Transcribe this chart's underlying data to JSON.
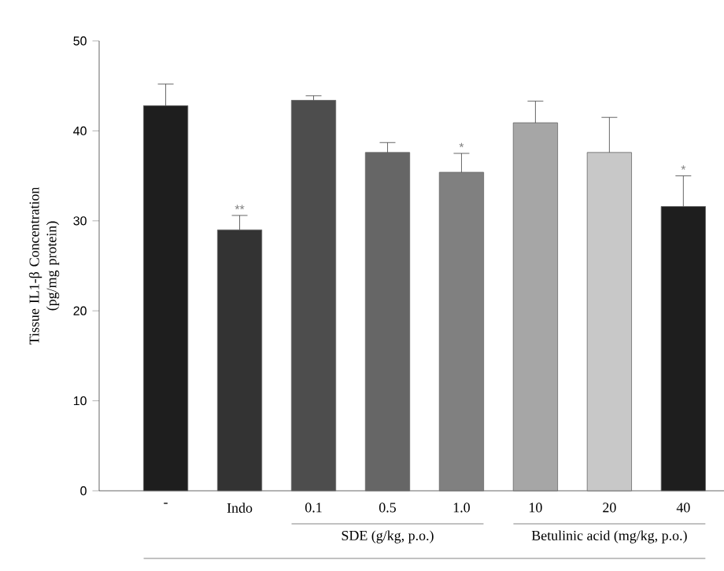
{
  "chart_data": {
    "type": "bar",
    "ylabel": "Tissue IL1-β Concentration (pg/mg protein)",
    "categories": [
      "-",
      "Indo",
      "0.1",
      "0.5",
      "1.0",
      "10",
      "20",
      "40"
    ],
    "values": [
      42.8,
      29.0,
      43.4,
      37.6,
      35.4,
      40.9,
      37.6,
      31.6
    ],
    "errors": [
      [
        42.8,
        45.2
      ],
      [
        29.0,
        30.6
      ],
      [
        43.4,
        43.9
      ],
      [
        37.6,
        38.7
      ],
      [
        35.4,
        37.5
      ],
      [
        40.9,
        43.3
      ],
      [
        37.6,
        41.5
      ],
      [
        31.6,
        35.0
      ]
    ],
    "colors": [
      "#1e1e1e",
      "#333333",
      "#4d4d4d",
      "#666666",
      "#808080",
      "#a6a6a6",
      "#c8c8c8",
      "#1e1e1e"
    ],
    "ylim": [
      0,
      50
    ],
    "yticks": [
      0,
      10,
      20,
      30,
      40,
      50
    ],
    "annotations": [
      {
        "text": "**",
        "x": "Indo",
        "y": 30.6
      },
      {
        "text": "*",
        "x": "1.0",
        "y": 37.5
      },
      {
        "text": "*",
        "x": "40",
        "y": 35.0
      },
      "SDE (g/kg, p.o.)",
      "Betulinic acid (mg/kg, p.o.)"
    ]
  }
}
